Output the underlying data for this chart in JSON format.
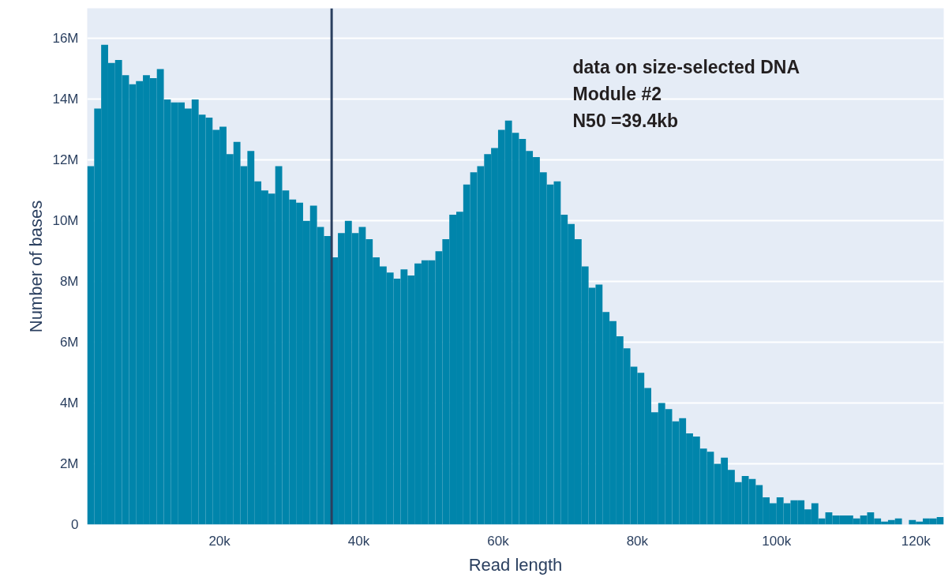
{
  "chart_data": {
    "type": "histogram",
    "xlabel": "Read length",
    "ylabel": "Number of bases",
    "color": "#0085ab",
    "annotations": [
      "data on size-selected DNA",
      "Module #2",
      "N50 =39.4kb"
    ],
    "bins": [
      1000,
      2000,
      3000,
      4000,
      5000,
      6000,
      7000,
      8000,
      9000,
      10000,
      11000,
      12000,
      13000,
      14000,
      15000,
      16000,
      17000,
      18000,
      19000,
      20000,
      21000,
      22000,
      23000,
      24000,
      25000,
      26000,
      27000,
      28000,
      29000,
      30000,
      31000,
      32000,
      33000,
      34000,
      35000,
      36000,
      37000,
      38000,
      39000,
      40000,
      41000,
      42000,
      43000,
      44000,
      45000,
      46000,
      47000,
      48000,
      49000,
      50000,
      51000,
      52000,
      53000,
      54000,
      55000,
      56000,
      57000,
      58000,
      59000,
      60000,
      61000,
      62000,
      63000,
      64000,
      65000,
      66000,
      67000,
      68000,
      69000,
      70000,
      71000,
      72000,
      73000,
      74000,
      75000,
      76000,
      77000,
      78000,
      79000,
      80000,
      81000,
      82000,
      83000,
      84000,
      85000,
      86000,
      87000,
      88000,
      89000,
      90000,
      91000,
      92000,
      93000,
      94000,
      95000,
      96000,
      97000,
      98000,
      99000,
      100000,
      101000,
      102000,
      103000,
      104000,
      105000,
      106000,
      107000,
      108000,
      109000,
      110000,
      111000,
      112000,
      113000,
      114000,
      115000,
      116000,
      117000,
      118000,
      119000,
      120000,
      121000,
      122000,
      123000,
      124000
    ],
    "values": [
      11.8,
      13.7,
      15.8,
      15.2,
      15.3,
      14.8,
      14.5,
      14.6,
      14.8,
      14.7,
      15.0,
      14.0,
      13.9,
      13.9,
      13.7,
      14.0,
      13.5,
      13.4,
      13.0,
      13.1,
      12.2,
      12.6,
      11.8,
      12.3,
      11.3,
      11.0,
      10.9,
      11.8,
      11.0,
      10.7,
      10.6,
      10.0,
      10.5,
      9.8,
      9.5,
      8.8,
      9.6,
      10.0,
      9.6,
      9.8,
      9.4,
      8.8,
      8.5,
      8.3,
      8.1,
      8.4,
      8.2,
      8.6,
      8.7,
      8.7,
      9.0,
      9.4,
      10.2,
      10.3,
      11.2,
      11.6,
      11.8,
      12.2,
      12.4,
      13.0,
      13.3,
      12.9,
      12.7,
      12.3,
      12.1,
      11.6,
      11.2,
      11.3,
      10.2,
      9.9,
      9.4,
      8.5,
      7.8,
      7.9,
      7.0,
      6.7,
      6.2,
      5.8,
      5.2,
      5.0,
      4.5,
      3.7,
      4.0,
      3.8,
      3.4,
      3.5,
      3.0,
      2.9,
      2.5,
      2.4,
      2.0,
      2.2,
      1.8,
      1.4,
      1.6,
      1.5,
      1.3,
      0.9,
      0.7,
      0.9,
      0.7,
      0.8,
      0.8,
      0.5,
      0.7,
      0.2,
      0.4,
      0.3,
      0.3,
      0.3,
      0.2,
      0.3,
      0.4,
      0.2,
      0.1,
      0.15,
      0.2,
      0.0,
      0.15,
      0.1,
      0.2,
      0.2,
      0.25
    ],
    "xlim": [
      1000,
      124000
    ],
    "ylim": [
      0,
      17
    ],
    "xticks": [
      {
        "value": 20000,
        "label": "20k"
      },
      {
        "value": 40000,
        "label": "40k"
      },
      {
        "value": 60000,
        "label": "60k"
      },
      {
        "value": 80000,
        "label": "80k"
      },
      {
        "value": 100000,
        "label": "100k"
      },
      {
        "value": 120000,
        "label": "120k"
      }
    ],
    "yticks": [
      0,
      {
        "value": 2,
        "label": "2M"
      },
      {
        "value": 4,
        "label": "4M"
      },
      {
        "value": 6,
        "label": "6M"
      },
      {
        "value": 8,
        "label": "8M"
      },
      {
        "value": 10,
        "label": "10M"
      },
      {
        "value": 12,
        "label": "12M"
      },
      {
        "value": 14,
        "label": "14M"
      },
      {
        "value": 16,
        "label": "16M"
      }
    ],
    "ref_lines": [
      {
        "axis": "x",
        "value": 36100,
        "label": null,
        "color": "#2a3f5f"
      }
    ],
    "grid": "y"
  }
}
